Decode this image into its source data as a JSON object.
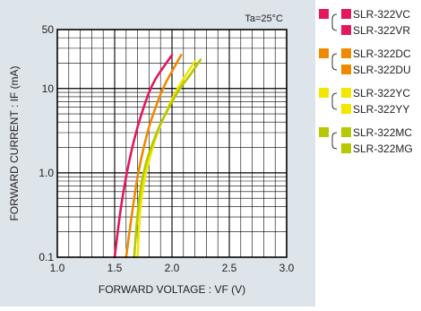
{
  "chart_data": {
    "type": "line",
    "annotation": "Ta=25°C",
    "xlabel": "FORWARD VOLTAGE : VF (V)",
    "ylabel": "FORWARD CURRENT : IF (mA)",
    "x_ticks": [
      "1.0",
      "1.5",
      "2.0",
      "2.5",
      "3.0"
    ],
    "y_ticks": [
      "0.1",
      "1.0",
      "10",
      "50"
    ],
    "xlim": [
      1.0,
      3.0
    ],
    "ylim": [
      0.1,
      50
    ],
    "yscale": "log",
    "grid": true,
    "legend_position": "outside-right",
    "series": [
      {
        "name": "SLR-322VC / SLR-322VR",
        "color": "#e4175f",
        "x": [
          1.5,
          1.55,
          1.6,
          1.65,
          1.7,
          1.75,
          1.8,
          1.85,
          1.9,
          2.0
        ],
        "y": [
          0.1,
          0.35,
          0.9,
          1.9,
          3.5,
          5.8,
          9.0,
          12.5,
          16,
          25
        ]
      },
      {
        "name": "SLR-322DC / SLR-322DU",
        "color": "#ef8a00",
        "x": [
          1.6,
          1.65,
          1.7,
          1.75,
          1.8,
          1.85,
          1.9,
          1.95,
          2.0,
          2.08
        ],
        "y": [
          0.1,
          0.32,
          0.9,
          1.9,
          3.5,
          5.6,
          8.5,
          12,
          16,
          25
        ]
      },
      {
        "name": "SLR-322YC / SLR-322YY",
        "color": "#f3e600",
        "x": [
          1.7,
          1.72,
          1.75,
          1.8,
          1.85,
          1.9,
          1.95,
          2.0,
          2.05,
          2.1,
          2.2
        ],
        "y": [
          0.1,
          0.32,
          0.7,
          1.4,
          2.4,
          3.7,
          5.3,
          7.5,
          10,
          13,
          21
        ]
      },
      {
        "name": "SLR-322MC / SLR-322MG",
        "color": "#b5c800",
        "x": [
          1.67,
          1.7,
          1.73,
          1.78,
          1.84,
          1.9,
          1.96,
          2.02,
          2.08,
          2.15,
          2.25
        ],
        "y": [
          0.1,
          0.32,
          0.7,
          1.4,
          2.4,
          3.8,
          5.5,
          7.8,
          10.5,
          14,
          22
        ]
      }
    ]
  },
  "legend": [
    {
      "color": "#e4175f",
      "labels": [
        "SLR-322VC",
        "SLR-322VR"
      ]
    },
    {
      "color": "#ef8a00",
      "labels": [
        "SLR-322DC",
        "SLR-322DU"
      ]
    },
    {
      "color": "#f3e600",
      "labels": [
        "SLR-322YC",
        "SLR-322YY"
      ]
    },
    {
      "color": "#b5c800",
      "labels": [
        "SLR-322MC",
        "SLR-322MG"
      ]
    }
  ],
  "colors": {
    "panel_bg": "#dde4ea",
    "plot_bg": "#ffffff",
    "grid": "#000000"
  }
}
